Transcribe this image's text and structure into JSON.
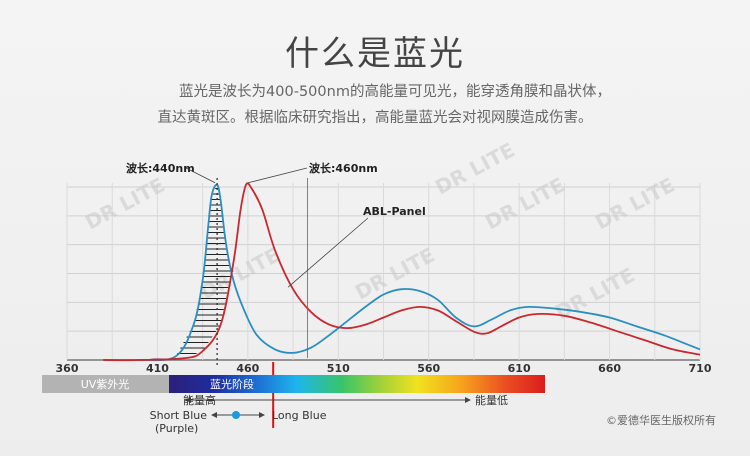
{
  "header": {
    "title": "什么是蓝光",
    "desc_line1": "蓝光是波长为400-500nm的高能量可见光，能穿透角膜和晶状体，",
    "desc_line2": "直达黄斑区。根据临床研究指出，高能量蓝光会对视网膜造成伤害。"
  },
  "chart_data": {
    "type": "line",
    "title": "",
    "xlabel": "",
    "ylabel": "",
    "xlim": [
      360,
      710
    ],
    "ylim": [
      0,
      1
    ],
    "x_ticks": [
      "360",
      "410",
      "460",
      "510",
      "560",
      "610",
      "660",
      "710"
    ],
    "grid": true,
    "series": [
      {
        "name": "",
        "color": "#2a8fc0",
        "points": [
          [
            380,
            0
          ],
          [
            400,
            0
          ],
          [
            420,
            0.02
          ],
          [
            430,
            0.2
          ],
          [
            435,
            0.45
          ],
          [
            438,
            0.75
          ],
          [
            440,
            0.93
          ],
          [
            443,
            0.99
          ],
          [
            445,
            0.9
          ],
          [
            448,
            0.65
          ],
          [
            452,
            0.45
          ],
          [
            458,
            0.28
          ],
          [
            465,
            0.14
          ],
          [
            475,
            0.06
          ],
          [
            485,
            0.04
          ],
          [
            495,
            0.07
          ],
          [
            505,
            0.14
          ],
          [
            515,
            0.22
          ],
          [
            525,
            0.3
          ],
          [
            535,
            0.37
          ],
          [
            545,
            0.4
          ],
          [
            555,
            0.39
          ],
          [
            565,
            0.34
          ],
          [
            575,
            0.24
          ],
          [
            585,
            0.19
          ],
          [
            595,
            0.23
          ],
          [
            605,
            0.28
          ],
          [
            615,
            0.3
          ],
          [
            630,
            0.29
          ],
          [
            645,
            0.27
          ],
          [
            660,
            0.24
          ],
          [
            675,
            0.19
          ],
          [
            690,
            0.14
          ],
          [
            705,
            0.08
          ],
          [
            710,
            0.06
          ]
        ]
      },
      {
        "name": "ABL-Panel",
        "color": "#c8292f",
        "points": [
          [
            380,
            0
          ],
          [
            400,
            0
          ],
          [
            425,
            0.01
          ],
          [
            435,
            0.05
          ],
          [
            445,
            0.2
          ],
          [
            452,
            0.55
          ],
          [
            456,
            0.85
          ],
          [
            459,
            0.99
          ],
          [
            462,
            0.97
          ],
          [
            468,
            0.85
          ],
          [
            475,
            0.62
          ],
          [
            485,
            0.4
          ],
          [
            495,
            0.27
          ],
          [
            505,
            0.2
          ],
          [
            515,
            0.18
          ],
          [
            525,
            0.2
          ],
          [
            535,
            0.24
          ],
          [
            545,
            0.28
          ],
          [
            555,
            0.3
          ],
          [
            565,
            0.28
          ],
          [
            575,
            0.22
          ],
          [
            585,
            0.16
          ],
          [
            592,
            0.15
          ],
          [
            600,
            0.19
          ],
          [
            610,
            0.24
          ],
          [
            620,
            0.26
          ],
          [
            635,
            0.25
          ],
          [
            650,
            0.21
          ],
          [
            665,
            0.16
          ],
          [
            680,
            0.11
          ],
          [
            695,
            0.06
          ],
          [
            710,
            0.03
          ]
        ]
      }
    ],
    "annotations": [
      {
        "text": "波长:440nm",
        "x": 443
      },
      {
        "text": "波长:460nm",
        "x": 459
      },
      {
        "text": "ABL-Panel",
        "x": 485
      }
    ],
    "vlines": {
      "dotted_x": 443,
      "red_solid_x": 474,
      "thin_red_x": 493
    }
  },
  "spectrum_bar": {
    "uv_label": "UV紫外光",
    "blue_label": "蓝光阶段",
    "energy_high": "能量高",
    "energy_low": "能量低",
    "short_blue": "Short Blue",
    "short_blue_sub": "(Purple)",
    "long_blue": "Long Blue"
  },
  "watermark": "DR LITE",
  "copyright": "©爱德华医生版权所有",
  "colors": {
    "blue_curve": "#2a8fc0",
    "red_curve": "#c8292f",
    "uv_bar": "#b3b3b3",
    "marker": "#1a9ae0"
  }
}
